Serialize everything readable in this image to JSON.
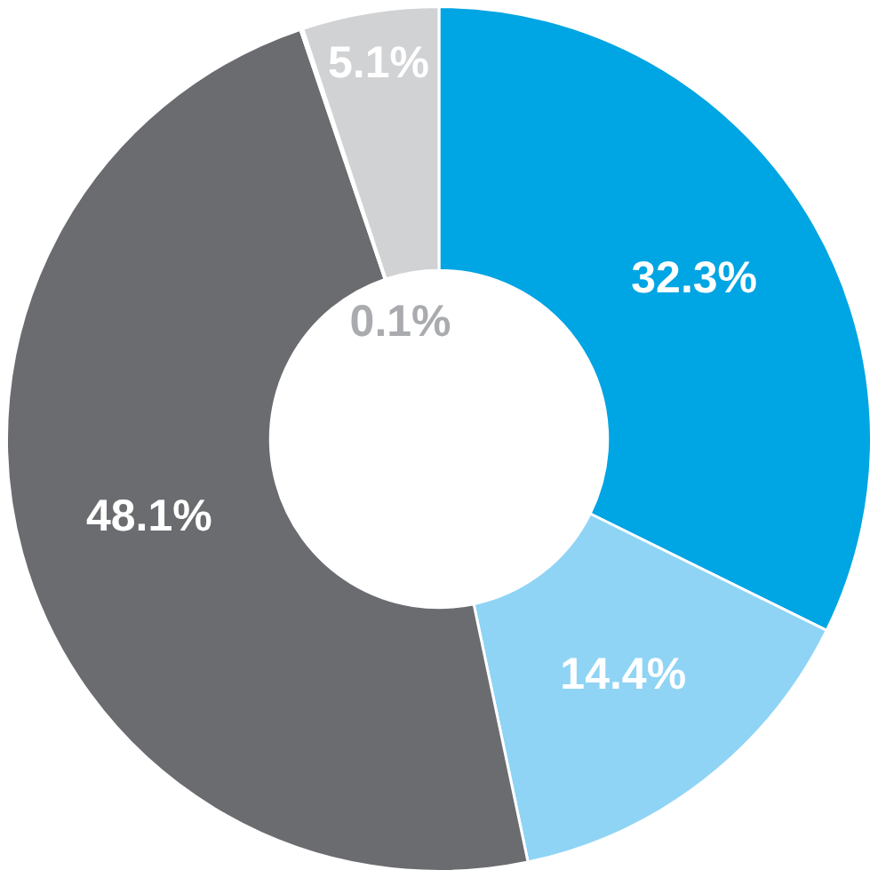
{
  "chart_data": {
    "type": "donut",
    "categories": [
      null,
      null,
      null,
      null,
      null
    ],
    "values": [
      32.3,
      14.4,
      48.1,
      0.1,
      5.1
    ],
    "value_labels": [
      "32.3%",
      "14.4%",
      "48.1%",
      "0.1%",
      "5.1%"
    ],
    "colors": [
      "#00a5e3",
      "#8fd4f5",
      "#6b6c70",
      "#a9abae",
      "#d1d2d4"
    ],
    "legend": false
  }
}
